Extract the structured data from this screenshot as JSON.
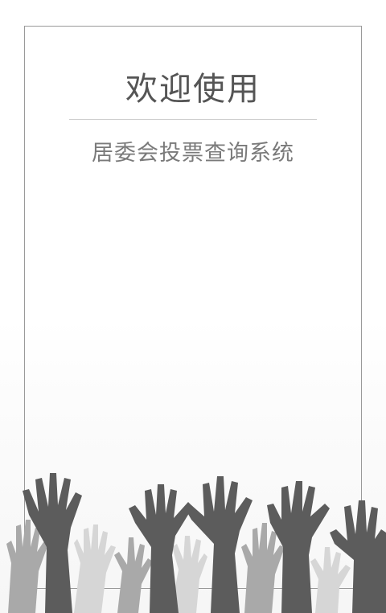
{
  "welcome_title": "欢迎使用",
  "subtitle": "居委会投票查询系统",
  "colors": {
    "frame_border": "#9a9a9a",
    "title_text": "#555555",
    "subtitle_text": "#7a7a7a",
    "hand_dark": "#5a5a5a",
    "hand_mid": "#a8a8a8",
    "hand_light": "#d4d4d4"
  },
  "illustration": "raised-hands-silhouette"
}
